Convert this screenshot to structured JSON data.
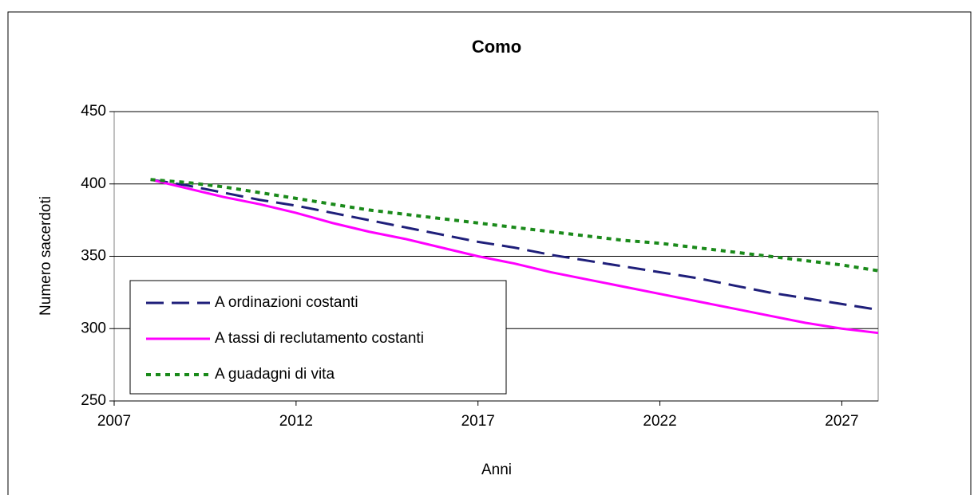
{
  "chart_data": {
    "type": "line",
    "title": "Como",
    "xlabel": "Anni",
    "ylabel": "Numero sacerdoti",
    "x": [
      2008,
      2009,
      2010,
      2011,
      2012,
      2013,
      2014,
      2015,
      2016,
      2017,
      2018,
      2019,
      2020,
      2021,
      2022,
      2023,
      2024,
      2025,
      2026,
      2027,
      2028
    ],
    "series": [
      {
        "name": "A ordinazioni costanti",
        "color": "#1f1f7a",
        "dash": "dashed",
        "values": [
          403,
          399,
          394,
          389,
          385,
          380,
          375,
          370,
          365,
          360,
          356,
          351,
          347,
          343,
          339,
          335,
          330,
          325,
          321,
          317,
          313
        ]
      },
      {
        "name": "A tassi di reclutamento costanti",
        "color": "#ff00ff",
        "dash": "solid",
        "values": [
          403,
          397,
          391,
          386,
          380,
          373,
          367,
          362,
          356,
          350,
          345,
          339,
          334,
          329,
          324,
          319,
          314,
          309,
          304,
          300,
          297
        ]
      },
      {
        "name": "A guadagni di vita",
        "color": "#1a8a1a",
        "dash": "dotted",
        "values": [
          403,
          401,
          398,
          394,
          390,
          386,
          382,
          379,
          376,
          373,
          370,
          367,
          364,
          361,
          359,
          356,
          353,
          350,
          347,
          344,
          340
        ]
      }
    ],
    "xlim": [
      2007,
      2028
    ],
    "xticks": [
      2007,
      2012,
      2017,
      2022,
      2027
    ],
    "ylim": [
      250,
      450
    ],
    "yticks": [
      250,
      300,
      350,
      400,
      450
    ],
    "grid": true,
    "legend": "lower left"
  }
}
